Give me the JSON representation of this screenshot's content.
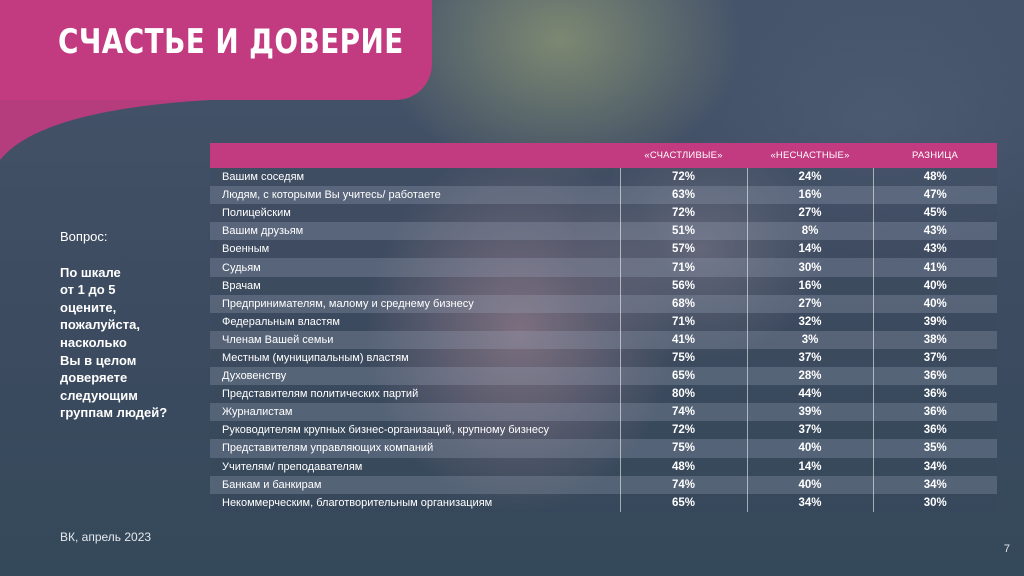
{
  "title": "СЧАСТЬЕ И ДОВЕРИЕ",
  "question": {
    "label": "Вопрос:",
    "text": "По шкале\nот 1 до 5\nоцените,\nпожалуйста,\nнасколько\nВы в целом\nдоверяете\nследующим\nгруппам людей?"
  },
  "table": {
    "headers": [
      "",
      "«СЧАСТЛИВЫЕ»",
      "«НЕСЧАСТНЫЕ»",
      "РАЗНИЦА"
    ],
    "rows": [
      {
        "group": "Вашим соседям",
        "happy": "72%",
        "unhappy": "24%",
        "diff": "48%"
      },
      {
        "group": "Людям, с которыми Вы учитесь/ работаете",
        "happy": "63%",
        "unhappy": "16%",
        "diff": "47%"
      },
      {
        "group": "Полицейским",
        "happy": "72%",
        "unhappy": "27%",
        "diff": "45%"
      },
      {
        "group": "Вашим друзьям",
        "happy": "51%",
        "unhappy": "8%",
        "diff": "43%"
      },
      {
        "group": "Военным",
        "happy": "57%",
        "unhappy": "14%",
        "diff": "43%"
      },
      {
        "group": "Судьям",
        "happy": "71%",
        "unhappy": "30%",
        "diff": "41%"
      },
      {
        "group": "Врачам",
        "happy": "56%",
        "unhappy": "16%",
        "diff": "40%"
      },
      {
        "group": "Предпринимателям, малому и среднему бизнесу",
        "happy": "68%",
        "unhappy": "27%",
        "diff": "40%"
      },
      {
        "group": "Федеральным властям",
        "happy": "71%",
        "unhappy": "32%",
        "diff": "39%"
      },
      {
        "group": "Членам Вашей семьи",
        "happy": "41%",
        "unhappy": "3%",
        "diff": "38%"
      },
      {
        "group": "Местным (муниципальным) властям",
        "happy": "75%",
        "unhappy": "37%",
        "diff": "37%"
      },
      {
        "group": "Духовенству",
        "happy": "65%",
        "unhappy": "28%",
        "diff": "36%"
      },
      {
        "group": "Представителям политических партий",
        "happy": "80%",
        "unhappy": "44%",
        "diff": "36%"
      },
      {
        "group": "Журналистам",
        "happy": "74%",
        "unhappy": "39%",
        "diff": "36%"
      },
      {
        "group": "Руководителям крупных бизнес-организаций, крупному бизнесу",
        "happy": "72%",
        "unhappy": "37%",
        "diff": "36%"
      },
      {
        "group": "Представителям управляющих компаний",
        "happy": "75%",
        "unhappy": "40%",
        "diff": "35%"
      },
      {
        "group": "Учителям/ преподавателям",
        "happy": "48%",
        "unhappy": "14%",
        "diff": "34%"
      },
      {
        "group": "Банкам и банкирам",
        "happy": "74%",
        "unhappy": "40%",
        "diff": "34%"
      },
      {
        "group": "Некоммерческим, благотворительным организациям",
        "happy": "65%",
        "unhappy": "34%",
        "diff": "30%"
      }
    ]
  },
  "footer": {
    "source": "ВК, апрель 2023",
    "page_number": "7"
  },
  "colors": {
    "accent": "#c23a80",
    "background": "#3f4f64"
  }
}
